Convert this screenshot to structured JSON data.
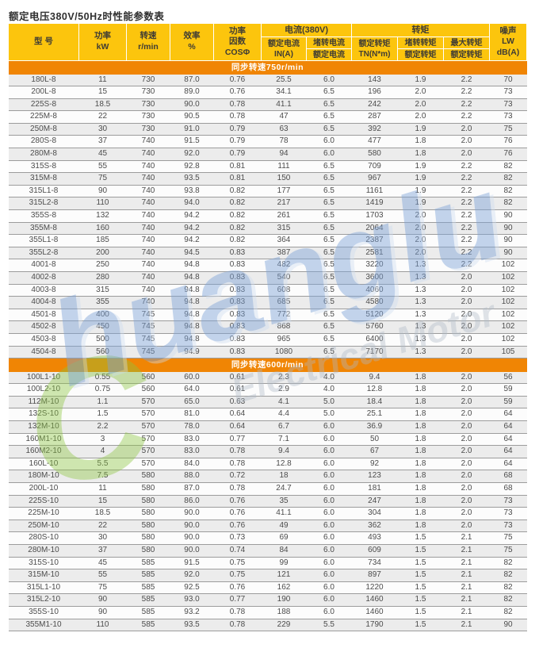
{
  "page_title": "额定电压380V/50Hz时性能参数表",
  "colors": {
    "header_yellow": "#fcc50d",
    "section_orange": "#f08504",
    "stripe_gray": "#ececec",
    "row_white": "#fcfcfc",
    "row_border": "#9c9c9c",
    "watermark_green": "#8cc63f",
    "watermark_blue": "#7da3d8"
  },
  "watermark": {
    "initial": "C",
    "text_rest": "huanglu",
    "subtext": "Electrical Motor"
  },
  "table": {
    "headers": {
      "model": "型  号",
      "power_l1": "功率",
      "power_l2": "kW",
      "speed_l1": "转速",
      "speed_l2": "r/min",
      "efficiency_l1": "效率",
      "efficiency_l2": "%",
      "cos_l1": "功率",
      "cos_l2": "因数",
      "cos_l3": "COSΦ",
      "current_group": "电流(380V)",
      "rated_current_l1": "额定电流",
      "rated_current_l2": "IN(A)",
      "locked_current_num": "堵转电流",
      "locked_current_den": "额定电流",
      "torque_group": "转矩",
      "rated_torque_l1": "额定转矩",
      "rated_torque_l2": "TN(N*m)",
      "locked_torque_num": "堵转转矩",
      "locked_torque_den": "额定转矩",
      "max_torque_num": "最大转矩",
      "max_torque_den": "额定转矩",
      "noise_l1": "噪声",
      "noise_l2": "LW dB(A)"
    },
    "sections": [
      {
        "title": "同步转速750r/min",
        "rows": [
          [
            "180L-8",
            "11",
            "730",
            "87.0",
            "0.76",
            "25.5",
            "6.0",
            "143",
            "1.9",
            "2.2",
            "70"
          ],
          [
            "200L-8",
            "15",
            "730",
            "89.0",
            "0.76",
            "34.1",
            "6.5",
            "196",
            "2.0",
            "2.2",
            "73"
          ],
          [
            "225S-8",
            "18.5",
            "730",
            "90.0",
            "0.78",
            "41.1",
            "6.5",
            "242",
            "2.0",
            "2.2",
            "73"
          ],
          [
            "225M-8",
            "22",
            "730",
            "90.5",
            "0.78",
            "47",
            "6.5",
            "287",
            "2.0",
            "2.2",
            "73"
          ],
          [
            "250M-8",
            "30",
            "730",
            "91.0",
            "0.79",
            "63",
            "6.5",
            "392",
            "1.9",
            "2.0",
            "75"
          ],
          [
            "280S-8",
            "37",
            "740",
            "91.5",
            "0.79",
            "78",
            "6.0",
            "477",
            "1.8",
            "2.0",
            "76"
          ],
          [
            "280M-8",
            "45",
            "740",
            "92.0",
            "0.79",
            "94",
            "6.0",
            "580",
            "1.8",
            "2.0",
            "76"
          ],
          [
            "315S-8",
            "55",
            "740",
            "92.8",
            "0.81",
            "111",
            "6.5",
            "709",
            "1.9",
            "2.2",
            "82"
          ],
          [
            "315M-8",
            "75",
            "740",
            "93.5",
            "0.81",
            "150",
            "6.5",
            "967",
            "1.9",
            "2.2",
            "82"
          ],
          [
            "315L1-8",
            "90",
            "740",
            "93.8",
            "0.82",
            "177",
            "6.5",
            "1161",
            "1.9",
            "2.2",
            "82"
          ],
          [
            "315L2-8",
            "110",
            "740",
            "94.0",
            "0.82",
            "217",
            "6.5",
            "1419",
            "1.9",
            "2.2",
            "82"
          ],
          [
            "355S-8",
            "132",
            "740",
            "94.2",
            "0.82",
            "261",
            "6.5",
            "1703",
            "2.0",
            "2.2",
            "90"
          ],
          [
            "355M-8",
            "160",
            "740",
            "94.2",
            "0.82",
            "315",
            "6.5",
            "2064",
            "2.0",
            "2.2",
            "90"
          ],
          [
            "355L1-8",
            "185",
            "740",
            "94.2",
            "0.82",
            "364",
            "6.5",
            "2387",
            "2.0",
            "2.2",
            "90"
          ],
          [
            "355L2-8",
            "200",
            "740",
            "94.5",
            "0.83",
            "387",
            "6.5",
            "2581",
            "2.0",
            "2.2",
            "90"
          ],
          [
            "4001-8",
            "250",
            "740",
            "94.8",
            "0.83",
            "482",
            "6.5",
            "3220",
            "1.3",
            "2.2",
            "102"
          ],
          [
            "4002-8",
            "280",
            "740",
            "94.8",
            "0.83",
            "540",
            "6.5",
            "3600",
            "1.3",
            "2.0",
            "102"
          ],
          [
            "4003-8",
            "315",
            "740",
            "94.8",
            "0.83",
            "608",
            "6.5",
            "4060",
            "1.3",
            "2.0",
            "102"
          ],
          [
            "4004-8",
            "355",
            "740",
            "94.8",
            "0.83",
            "685",
            "6.5",
            "4580",
            "1.3",
            "2.0",
            "102"
          ],
          [
            "4501-8",
            "400",
            "745",
            "94.8",
            "0.83",
            "772",
            "6.5",
            "5120",
            "1.3",
            "2.0",
            "102"
          ],
          [
            "4502-8",
            "450",
            "745",
            "94.8",
            "0.83",
            "868",
            "6.5",
            "5760",
            "1.3",
            "2.0",
            "102"
          ],
          [
            "4503-8",
            "500",
            "745",
            "94.8",
            "0.83",
            "965",
            "6.5",
            "6400",
            "1.3",
            "2.0",
            "102"
          ],
          [
            "4504-8",
            "560",
            "745",
            "94.9",
            "0.83",
            "1080",
            "6.5",
            "7170",
            "1.3",
            "2.0",
            "105"
          ]
        ]
      },
      {
        "title": "同步转速600r/min",
        "rows": [
          [
            "100L1-10",
            "0.55",
            "560",
            "60.0",
            "0.61",
            "2.3",
            "4.0",
            "9.4",
            "1.8",
            "2.0",
            "56"
          ],
          [
            "100L2-10",
            "0.75",
            "560",
            "64.0",
            "0.61",
            "2.9",
            "4.0",
            "12.8",
            "1.8",
            "2.0",
            "59"
          ],
          [
            "112M-10",
            "1.1",
            "570",
            "65.0",
            "0.63",
            "4.1",
            "5.0",
            "18.4",
            "1.8",
            "2.0",
            "59"
          ],
          [
            "132S-10",
            "1.5",
            "570",
            "81.0",
            "0.64",
            "4.4",
            "5.0",
            "25.1",
            "1.8",
            "2.0",
            "64"
          ],
          [
            "132M-10",
            "2.2",
            "570",
            "78.0",
            "0.64",
            "6.7",
            "6.0",
            "36.9",
            "1.8",
            "2.0",
            "64"
          ],
          [
            "160M1-10",
            "3",
            "570",
            "83.0",
            "0.77",
            "7.1",
            "6.0",
            "50",
            "1.8",
            "2.0",
            "64"
          ],
          [
            "160M2-10",
            "4",
            "570",
            "83.0",
            "0.78",
            "9.4",
            "6.0",
            "67",
            "1.8",
            "2.0",
            "64"
          ],
          [
            "160L-10",
            "5.5",
            "570",
            "84.0",
            "0.78",
            "12.8",
            "6.0",
            "92",
            "1.8",
            "2.0",
            "64"
          ],
          [
            "180M-10",
            "7.5",
            "580",
            "88.0",
            "0.72",
            "18",
            "6.0",
            "123",
            "1.8",
            "2.0",
            "68"
          ],
          [
            "200L-10",
            "11",
            "580",
            "87.0",
            "0.78",
            "24.7",
            "6.0",
            "181",
            "1.8",
            "2.0",
            "68"
          ],
          [
            "225S-10",
            "15",
            "580",
            "86.0",
            "0.76",
            "35",
            "6.0",
            "247",
            "1.8",
            "2.0",
            "73"
          ],
          [
            "225M-10",
            "18.5",
            "580",
            "90.0",
            "0.76",
            "41.1",
            "6.0",
            "304",
            "1.8",
            "2.0",
            "73"
          ],
          [
            "250M-10",
            "22",
            "580",
            "90.0",
            "0.76",
            "49",
            "6.0",
            "362",
            "1.8",
            "2.0",
            "73"
          ],
          [
            "280S-10",
            "30",
            "580",
            "90.0",
            "0.73",
            "69",
            "6.0",
            "493",
            "1.5",
            "2.1",
            "75"
          ],
          [
            "280M-10",
            "37",
            "580",
            "90.0",
            "0.74",
            "84",
            "6.0",
            "609",
            "1.5",
            "2.1",
            "75"
          ],
          [
            "315S-10",
            "45",
            "585",
            "91.5",
            "0.75",
            "99",
            "6.0",
            "734",
            "1.5",
            "2.1",
            "82"
          ],
          [
            "315M-10",
            "55",
            "585",
            "92.0",
            "0.75",
            "121",
            "6.0",
            "897",
            "1.5",
            "2.1",
            "82"
          ],
          [
            "315L1-10",
            "75",
            "585",
            "92.5",
            "0.76",
            "162",
            "6.0",
            "1220",
            "1.5",
            "2.1",
            "82"
          ],
          [
            "315L2-10",
            "90",
            "585",
            "93.0",
            "0.77",
            "190",
            "6.0",
            "1460",
            "1.5",
            "2.1",
            "82"
          ],
          [
            "355S-10",
            "90",
            "585",
            "93.2",
            "0.78",
            "188",
            "6.0",
            "1460",
            "1.5",
            "2.1",
            "82"
          ],
          [
            "355M1-10",
            "110",
            "585",
            "93.5",
            "0.78",
            "229",
            "5.5",
            "1790",
            "1.5",
            "2.1",
            "90"
          ]
        ]
      }
    ]
  }
}
